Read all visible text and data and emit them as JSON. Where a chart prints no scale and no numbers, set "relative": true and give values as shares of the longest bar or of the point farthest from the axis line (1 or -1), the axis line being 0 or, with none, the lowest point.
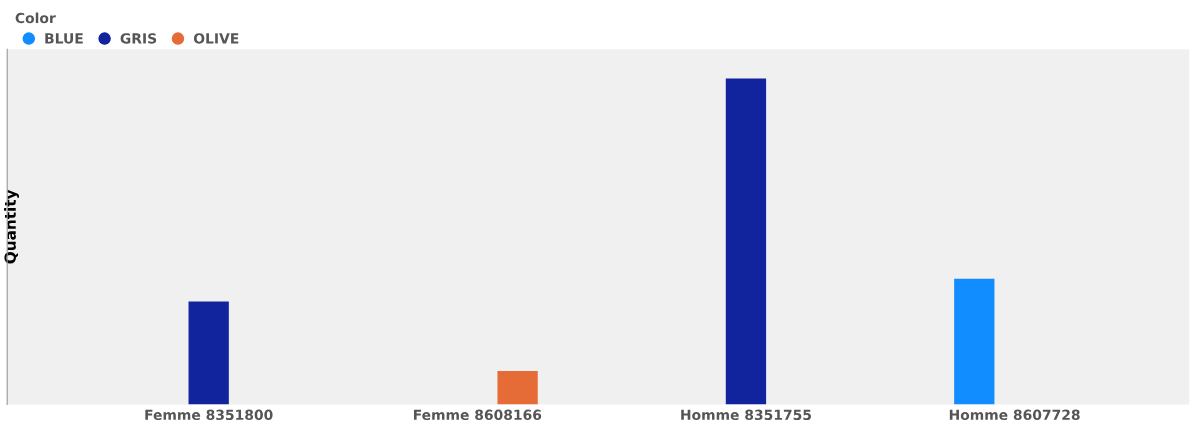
{
  "chart_data": {
    "type": "bar",
    "ylabel": "Quantity",
    "legend_title": "Color",
    "legend": "top left",
    "relative": true,
    "grid": false,
    "categories": [
      "Femme 8351800",
      "Femme 8608166",
      "Homme 8351755",
      "Homme 8607728"
    ],
    "series": [
      {
        "name": "BLUE",
        "color": "#118dff",
        "values": [
          null,
          null,
          null,
          0.386
        ]
      },
      {
        "name": "GRIS",
        "color": "#12239e",
        "values": [
          0.316,
          null,
          1,
          null
        ]
      },
      {
        "name": "OLIVE",
        "color": "#e66c37",
        "values": [
          null,
          0.103,
          null,
          null
        ]
      }
    ]
  }
}
